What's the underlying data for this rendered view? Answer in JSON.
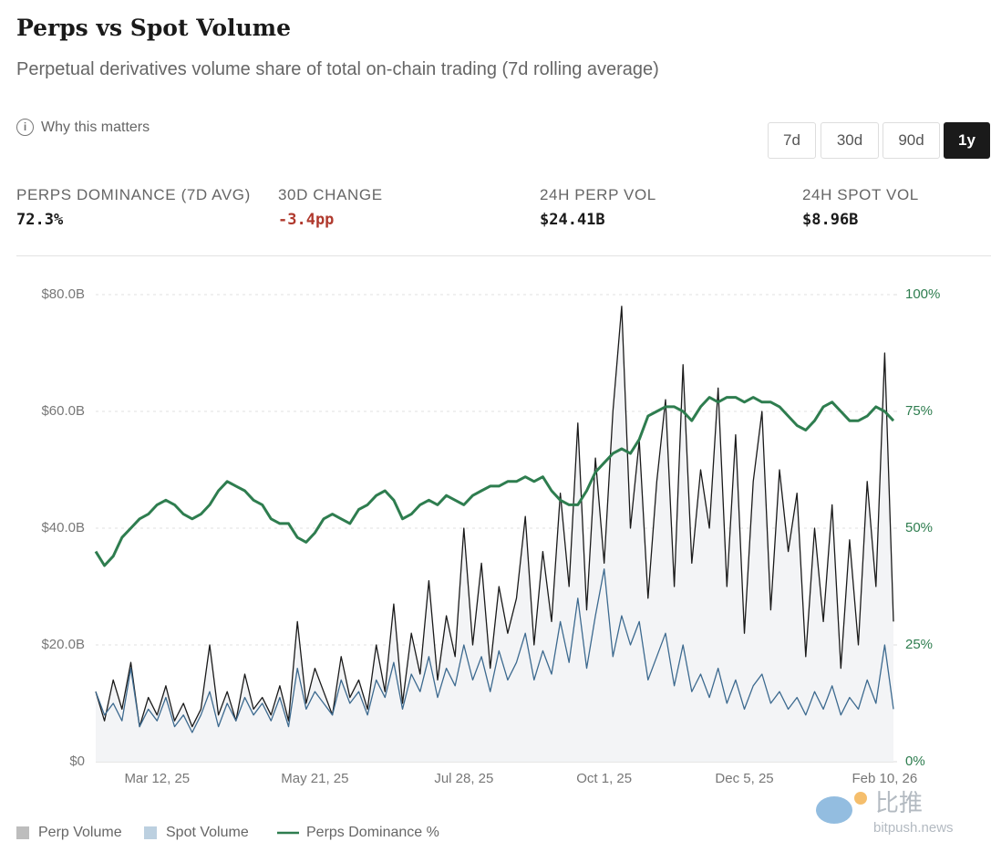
{
  "header": {
    "title": "Perps vs Spot Volume",
    "subtitle": "Perpetual derivatives volume share of total on-chain trading (7d rolling average)",
    "info": "Why this matters"
  },
  "range_buttons": [
    {
      "label": "7d",
      "active": false
    },
    {
      "label": "30d",
      "active": false
    },
    {
      "label": "90d",
      "active": false
    },
    {
      "label": "1y",
      "active": true
    }
  ],
  "stats": [
    {
      "label": "PERPS DOMINANCE (7D AVG)",
      "value": "72.3%",
      "color": "#1a1a1a"
    },
    {
      "label": "30D CHANGE",
      "value": "-3.4pp",
      "color": "#b03a2e"
    },
    {
      "label": "24H PERP VOL",
      "value": "$24.41B",
      "color": "#1a1a1a"
    },
    {
      "label": "24H SPOT VOL",
      "value": "$8.96B",
      "color": "#1a1a1a"
    }
  ],
  "watermark": {
    "text": "比推",
    "site": "bitpush.news"
  },
  "chart_data": {
    "type": "line",
    "categories": [
      null,
      null,
      null,
      null,
      null,
      null,
      null,
      "Mar 12, 25",
      null,
      null,
      null,
      null,
      null,
      null,
      null,
      null,
      null,
      null,
      null,
      null,
      null,
      null,
      null,
      null,
      null,
      "May 21, 25",
      null,
      null,
      null,
      null,
      null,
      null,
      null,
      null,
      null,
      null,
      null,
      null,
      null,
      null,
      null,
      null,
      "Jul 28, 25",
      null,
      null,
      null,
      null,
      null,
      null,
      null,
      null,
      null,
      null,
      null,
      null,
      null,
      null,
      null,
      "Oct 1, 25",
      null,
      null,
      null,
      null,
      null,
      null,
      null,
      null,
      null,
      null,
      null,
      null,
      null,
      null,
      null,
      "Dec 5, 25",
      null,
      null,
      null,
      null,
      null,
      null,
      null,
      null,
      null,
      null,
      null,
      null,
      null,
      null,
      null,
      "Feb 10, 26",
      null
    ],
    "series": [
      {
        "name": "Perp Volume",
        "color": "#1a1a1a",
        "area": "#f3f4f6",
        "swatch": "#bdbdbd",
        "axis": "y",
        "values": [
          12,
          7,
          14,
          9,
          17,
          6,
          11,
          8,
          13,
          7,
          10,
          6,
          9,
          20,
          8,
          12,
          7,
          15,
          9,
          11,
          8,
          13,
          7,
          24,
          10,
          16,
          12,
          8,
          18,
          11,
          14,
          9,
          20,
          12,
          27,
          10,
          22,
          15,
          31,
          14,
          25,
          18,
          40,
          20,
          34,
          16,
          30,
          22,
          28,
          42,
          20,
          36,
          24,
          46,
          30,
          58,
          26,
          52,
          34,
          60,
          78,
          40,
          55,
          28,
          48,
          62,
          30,
          68,
          34,
          50,
          40,
          64,
          30,
          56,
          22,
          48,
          60,
          26,
          50,
          36,
          46,
          18,
          40,
          24,
          44,
          16,
          38,
          20,
          48,
          30,
          70,
          24
        ]
      },
      {
        "name": "Spot Volume",
        "color": "#3d6a8f",
        "swatch": "#bcd0e0",
        "axis": "y",
        "values": [
          12,
          8,
          10,
          7,
          16,
          6,
          9,
          7,
          11,
          6,
          8,
          5,
          8,
          12,
          6,
          10,
          7,
          11,
          8,
          10,
          7,
          11,
          6,
          16,
          9,
          12,
          10,
          8,
          14,
          10,
          12,
          8,
          14,
          11,
          17,
          9,
          15,
          12,
          18,
          11,
          16,
          13,
          20,
          14,
          18,
          12,
          19,
          14,
          17,
          22,
          14,
          19,
          15,
          24,
          17,
          28,
          16,
          25,
          33,
          18,
          25,
          20,
          24,
          14,
          18,
          22,
          13,
          20,
          12,
          15,
          11,
          16,
          10,
          14,
          9,
          13,
          15,
          10,
          12,
          9,
          11,
          8,
          12,
          9,
          13,
          8,
          11,
          9,
          14,
          10,
          20,
          9
        ]
      },
      {
        "name": "Perps Dominance %",
        "color": "#2e7d4f",
        "swatch": "#2e7d4f",
        "axis": "y2",
        "values": [
          45,
          42,
          44,
          48,
          50,
          52,
          53,
          55,
          56,
          55,
          53,
          52,
          53,
          55,
          58,
          60,
          59,
          58,
          56,
          55,
          52,
          51,
          51,
          48,
          47,
          49,
          52,
          53,
          52,
          51,
          54,
          55,
          57,
          58,
          56,
          52,
          53,
          55,
          56,
          55,
          57,
          56,
          55,
          57,
          58,
          59,
          59,
          60,
          60,
          61,
          60,
          61,
          58,
          56,
          55,
          55,
          58,
          62,
          64,
          66,
          67,
          66,
          69,
          74,
          75,
          76,
          76,
          75,
          73,
          76,
          78,
          77,
          78,
          78,
          77,
          78,
          77,
          77,
          76,
          74,
          72,
          71,
          73,
          76,
          77,
          75,
          73,
          73,
          74,
          76,
          75,
          73
        ]
      }
    ],
    "ylim": [
      0,
      80
    ],
    "yticks": [
      {
        "value": 0,
        "label": "$0"
      },
      {
        "value": 20,
        "label": "$20.0B"
      },
      {
        "value": 40,
        "label": "$40.0B"
      },
      {
        "value": 60,
        "label": "$60.0B"
      },
      {
        "value": 80,
        "label": "$80.0B"
      }
    ],
    "y2lim": [
      0,
      100
    ],
    "y2ticks": [
      {
        "value": 0,
        "label": "0%"
      },
      {
        "value": 25,
        "label": "25%"
      },
      {
        "value": 50,
        "label": "50%"
      },
      {
        "value": 75,
        "label": "75%"
      },
      {
        "value": 100,
        "label": "100%"
      }
    ],
    "grid": true,
    "legend": "bottom-left"
  }
}
